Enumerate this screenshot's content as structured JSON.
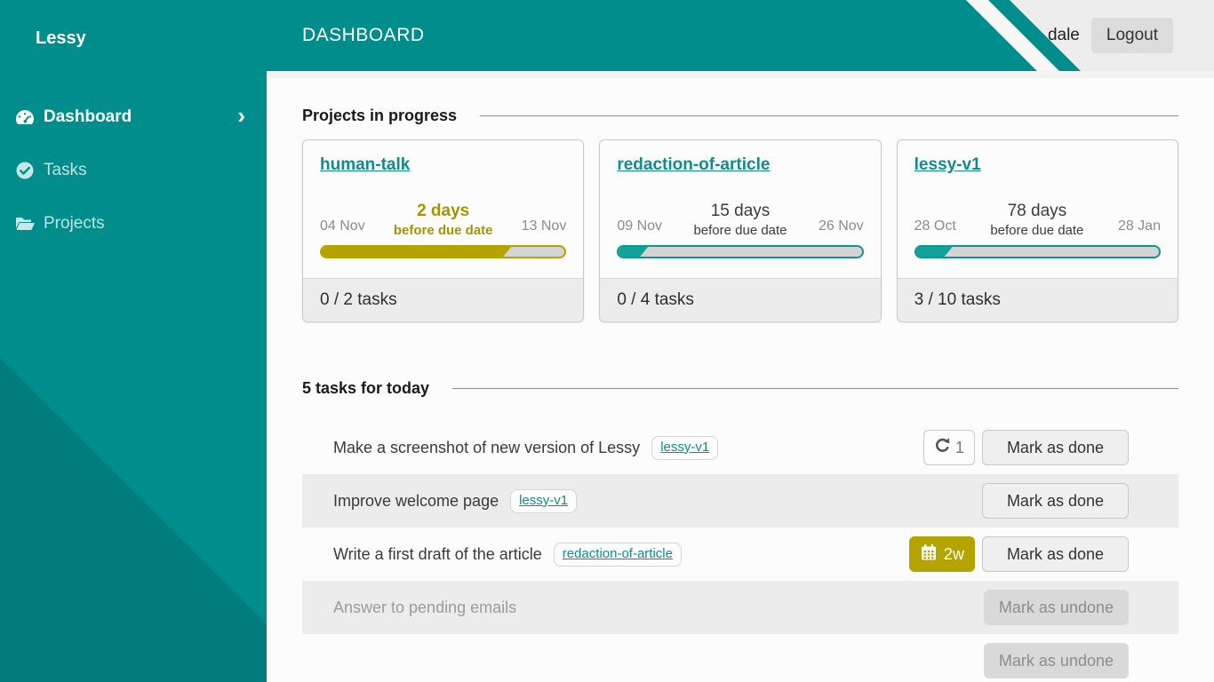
{
  "app": {
    "name": "Lessy",
    "page_title": "DASHBOARD",
    "user": "dale",
    "logout_label": "Logout"
  },
  "colors": {
    "teal": "#008d8c",
    "teal_dark": "#007d7c",
    "gold": "#b5a300",
    "header_gray": "#ededed",
    "panel_bg": "#fcfcfc",
    "row_alt": "#ececec"
  },
  "sidebar": {
    "items": [
      {
        "label": "Dashboard",
        "icon": "gauge-icon",
        "active": true
      },
      {
        "label": "Tasks",
        "icon": "check-circle-icon",
        "active": false
      },
      {
        "label": "Projects",
        "icon": "folder-open-icon",
        "active": false
      }
    ]
  },
  "projects_section": {
    "title": "Projects in progress",
    "cards": [
      {
        "name": "human-talk",
        "start": "04 Nov",
        "days": "2 days",
        "subtitle": "before due date",
        "end": "13 Nov",
        "progress_pct": 78,
        "tasks": "0 / 2 tasks",
        "urgent": true
      },
      {
        "name": "redaction-of-article",
        "start": "09 Nov",
        "days": "15 days",
        "subtitle": "before due date",
        "end": "26 Nov",
        "progress_pct": 12,
        "tasks": "0 / 4 tasks",
        "urgent": false
      },
      {
        "name": "lessy-v1",
        "start": "28 Oct",
        "days": "78 days",
        "subtitle": "before due date",
        "end": "28 Jan",
        "progress_pct": 15,
        "tasks": "3 / 10 tasks",
        "urgent": false
      }
    ]
  },
  "tasks_section": {
    "title": "5 tasks for today",
    "tasks": [
      {
        "label": "Make a screenshot of new version of Lessy",
        "project": "lessy-v1",
        "restart_count": "1",
        "button": "Mark as done",
        "done": false
      },
      {
        "label": "Improve welcome page",
        "project": "lessy-v1",
        "button": "Mark as done",
        "done": false
      },
      {
        "label": "Write a first draft of the article",
        "project": "redaction-of-article",
        "due_badge": "2w",
        "button": "Mark as done",
        "done": false
      },
      {
        "label": "Answer to pending emails",
        "button": "Mark as undone",
        "done": true
      },
      {
        "label": "",
        "button": "Mark as undone",
        "done": true
      }
    ]
  }
}
